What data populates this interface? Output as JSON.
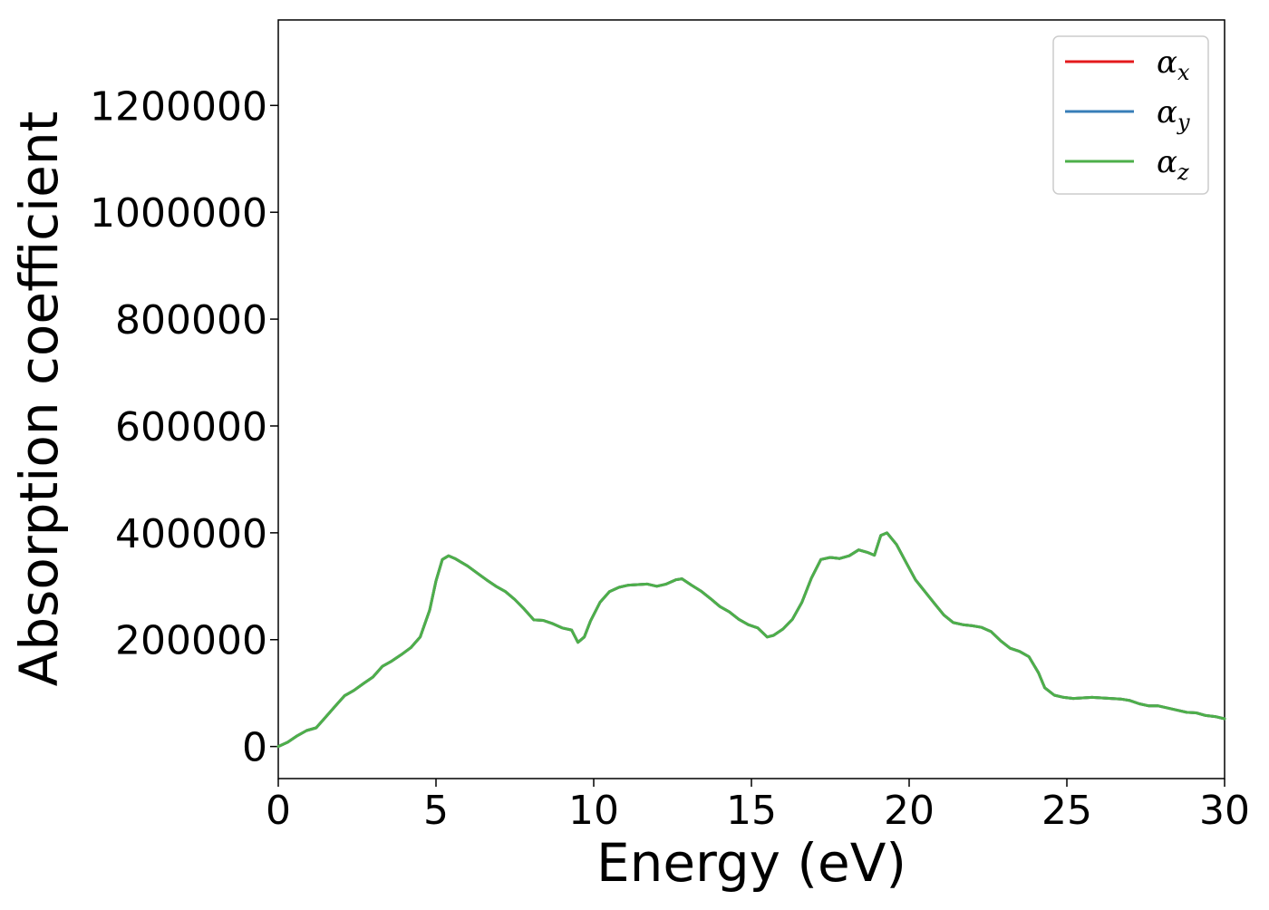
{
  "chart_data": {
    "type": "line",
    "title": "",
    "xlabel": "Energy (eV)",
    "ylabel": "Absorption coefficient",
    "xlim": [
      0,
      30
    ],
    "ylim": [
      -60000,
      1360000
    ],
    "xticks": [
      0,
      5,
      10,
      15,
      20,
      25,
      30
    ],
    "yticks": [
      0,
      200000,
      400000,
      600000,
      800000,
      1000000,
      1200000
    ],
    "xtick_labels": [
      "0",
      "5",
      "10",
      "15",
      "20",
      "25",
      "30"
    ],
    "ytick_labels": [
      "0",
      "200000",
      "400000",
      "600000",
      "800000",
      "1000000",
      "1200000"
    ],
    "grid": false,
    "legend_position": "top-right",
    "x": [
      0,
      0.3,
      0.6,
      0.9,
      1.2,
      1.5,
      1.8,
      2.1,
      2.4,
      2.7,
      3.0,
      3.3,
      3.6,
      3.9,
      4.2,
      4.5,
      4.8,
      5.0,
      5.2,
      5.4,
      5.6,
      5.8,
      6.0,
      6.3,
      6.6,
      6.9,
      7.2,
      7.5,
      7.8,
      8.1,
      8.4,
      8.7,
      9.0,
      9.3,
      9.5,
      9.7,
      9.9,
      10.2,
      10.5,
      10.8,
      11.1,
      11.4,
      11.7,
      12.0,
      12.3,
      12.6,
      12.8,
      13.1,
      13.4,
      13.7,
      14.0,
      14.3,
      14.6,
      14.9,
      15.2,
      15.5,
      15.7,
      16.0,
      16.3,
      16.6,
      16.9,
      17.2,
      17.5,
      17.8,
      18.1,
      18.4,
      18.7,
      18.9,
      19.1,
      19.3,
      19.6,
      19.9,
      20.2,
      20.5,
      20.8,
      21.1,
      21.4,
      21.7,
      22.0,
      22.3,
      22.6,
      22.9,
      23.2,
      23.5,
      23.8,
      24.1,
      24.3,
      24.6,
      24.9,
      25.2,
      25.5,
      25.8,
      26.1,
      26.4,
      26.7,
      27.0,
      27.3,
      27.6,
      27.9,
      28.2,
      28.5,
      28.8,
      29.1,
      29.4,
      29.7,
      30.0
    ],
    "series": [
      {
        "name": "αx",
        "label_base": "α",
        "label_sub": "x",
        "color": "#e41a1c",
        "y": [
          0,
          8000,
          20000,
          30000,
          35000,
          55000,
          75000,
          95000,
          105000,
          118000,
          130000,
          150000,
          160000,
          172000,
          185000,
          205000,
          255000,
          310000,
          350000,
          357000,
          352000,
          345000,
          338000,
          325000,
          312000,
          300000,
          290000,
          275000,
          257000,
          237000,
          236000,
          230000,
          222000,
          218000,
          195000,
          205000,
          235000,
          270000,
          290000,
          298000,
          302000,
          303000,
          304000,
          300000,
          304000,
          312000,
          314000,
          302000,
          291000,
          277000,
          262000,
          252000,
          238000,
          228000,
          222000,
          205000,
          208000,
          220000,
          238000,
          270000,
          315000,
          350000,
          354000,
          352000,
          357000,
          368000,
          363000,
          358000,
          395000,
          400000,
          378000,
          345000,
          312000,
          290000,
          268000,
          246000,
          232000,
          228000,
          226000,
          223000,
          215000,
          198000,
          184000,
          178000,
          168000,
          138000,
          110000,
          96000,
          92000,
          90000,
          91000,
          92000,
          91000,
          90000,
          89000,
          86000,
          80000,
          76000,
          76000,
          72000,
          68000,
          64000,
          63000,
          58000,
          56000,
          52000
        ]
      },
      {
        "name": "αy",
        "label_base": "α",
        "label_sub": "y",
        "color": "#377eb8",
        "y": [
          0,
          8000,
          20000,
          30000,
          35000,
          55000,
          75000,
          95000,
          105000,
          118000,
          130000,
          150000,
          160000,
          172000,
          185000,
          205000,
          255000,
          310000,
          350000,
          357000,
          352000,
          345000,
          338000,
          325000,
          312000,
          300000,
          290000,
          275000,
          257000,
          237000,
          236000,
          230000,
          222000,
          218000,
          195000,
          205000,
          235000,
          270000,
          290000,
          298000,
          302000,
          303000,
          304000,
          300000,
          304000,
          312000,
          314000,
          302000,
          291000,
          277000,
          262000,
          252000,
          238000,
          228000,
          222000,
          205000,
          208000,
          220000,
          238000,
          270000,
          315000,
          350000,
          354000,
          352000,
          357000,
          368000,
          363000,
          358000,
          395000,
          400000,
          378000,
          345000,
          312000,
          290000,
          268000,
          246000,
          232000,
          228000,
          226000,
          223000,
          215000,
          198000,
          184000,
          178000,
          168000,
          138000,
          110000,
          96000,
          92000,
          90000,
          91000,
          92000,
          91000,
          90000,
          89000,
          86000,
          80000,
          76000,
          76000,
          72000,
          68000,
          64000,
          63000,
          58000,
          56000,
          52000
        ]
      },
      {
        "name": "αz",
        "label_base": "α",
        "label_sub": "z",
        "color": "#4daf4a",
        "y": [
          0,
          8000,
          20000,
          30000,
          35000,
          55000,
          75000,
          95000,
          105000,
          118000,
          130000,
          150000,
          160000,
          172000,
          185000,
          205000,
          255000,
          310000,
          350000,
          357000,
          352000,
          345000,
          338000,
          325000,
          312000,
          300000,
          290000,
          275000,
          257000,
          237000,
          236000,
          230000,
          222000,
          218000,
          195000,
          205000,
          235000,
          270000,
          290000,
          298000,
          302000,
          303000,
          304000,
          300000,
          304000,
          312000,
          314000,
          302000,
          291000,
          277000,
          262000,
          252000,
          238000,
          228000,
          222000,
          205000,
          208000,
          220000,
          238000,
          270000,
          315000,
          350000,
          354000,
          352000,
          357000,
          368000,
          363000,
          358000,
          395000,
          400000,
          378000,
          345000,
          312000,
          290000,
          268000,
          246000,
          232000,
          228000,
          226000,
          223000,
          215000,
          198000,
          184000,
          178000,
          168000,
          138000,
          110000,
          96000,
          92000,
          90000,
          91000,
          92000,
          91000,
          90000,
          89000,
          86000,
          80000,
          76000,
          76000,
          72000,
          68000,
          64000,
          63000,
          58000,
          56000,
          52000
        ]
      }
    ]
  }
}
